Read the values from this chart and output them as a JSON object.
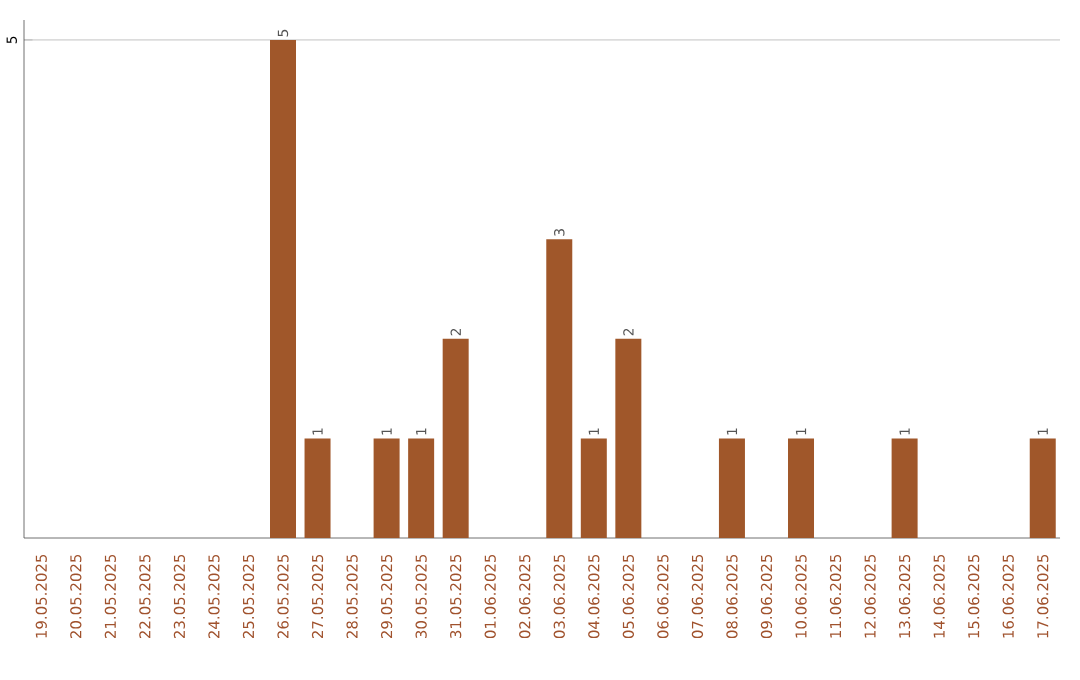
{
  "chart_data": {
    "type": "bar",
    "categories": [
      "19.05.2025",
      "20.05.2025",
      "21.05.2025",
      "22.05.2025",
      "23.05.2025",
      "24.05.2025",
      "25.05.2025",
      "26.05.2025",
      "27.05.2025",
      "28.05.2025",
      "29.05.2025",
      "30.05.2025",
      "31.05.2025",
      "01.06.2025",
      "02.06.2025",
      "03.06.2025",
      "04.06.2025",
      "05.06.2025",
      "06.06.2025",
      "07.06.2025",
      "08.06.2025",
      "09.06.2025",
      "10.06.2025",
      "11.06.2025",
      "12.06.2025",
      "13.06.2025",
      "14.06.2025",
      "15.06.2025",
      "16.06.2025",
      "17.06.2025"
    ],
    "values": [
      0,
      0,
      0,
      0,
      0,
      0,
      0,
      5,
      1,
      0,
      1,
      1,
      2,
      0,
      0,
      3,
      1,
      2,
      0,
      0,
      1,
      0,
      1,
      0,
      0,
      1,
      0,
      0,
      0,
      1
    ],
    "value_labels": [
      null,
      null,
      null,
      null,
      null,
      null,
      null,
      "5",
      "1",
      null,
      "1",
      "1",
      "2",
      null,
      null,
      "3",
      "1",
      "2",
      null,
      null,
      "1",
      null,
      "1",
      null,
      null,
      "1",
      null,
      null,
      null,
      "1"
    ],
    "color": "#a0572a",
    "ylim": [
      0,
      5.2
    ],
    "yticks": [
      5
    ],
    "grid": "y"
  }
}
